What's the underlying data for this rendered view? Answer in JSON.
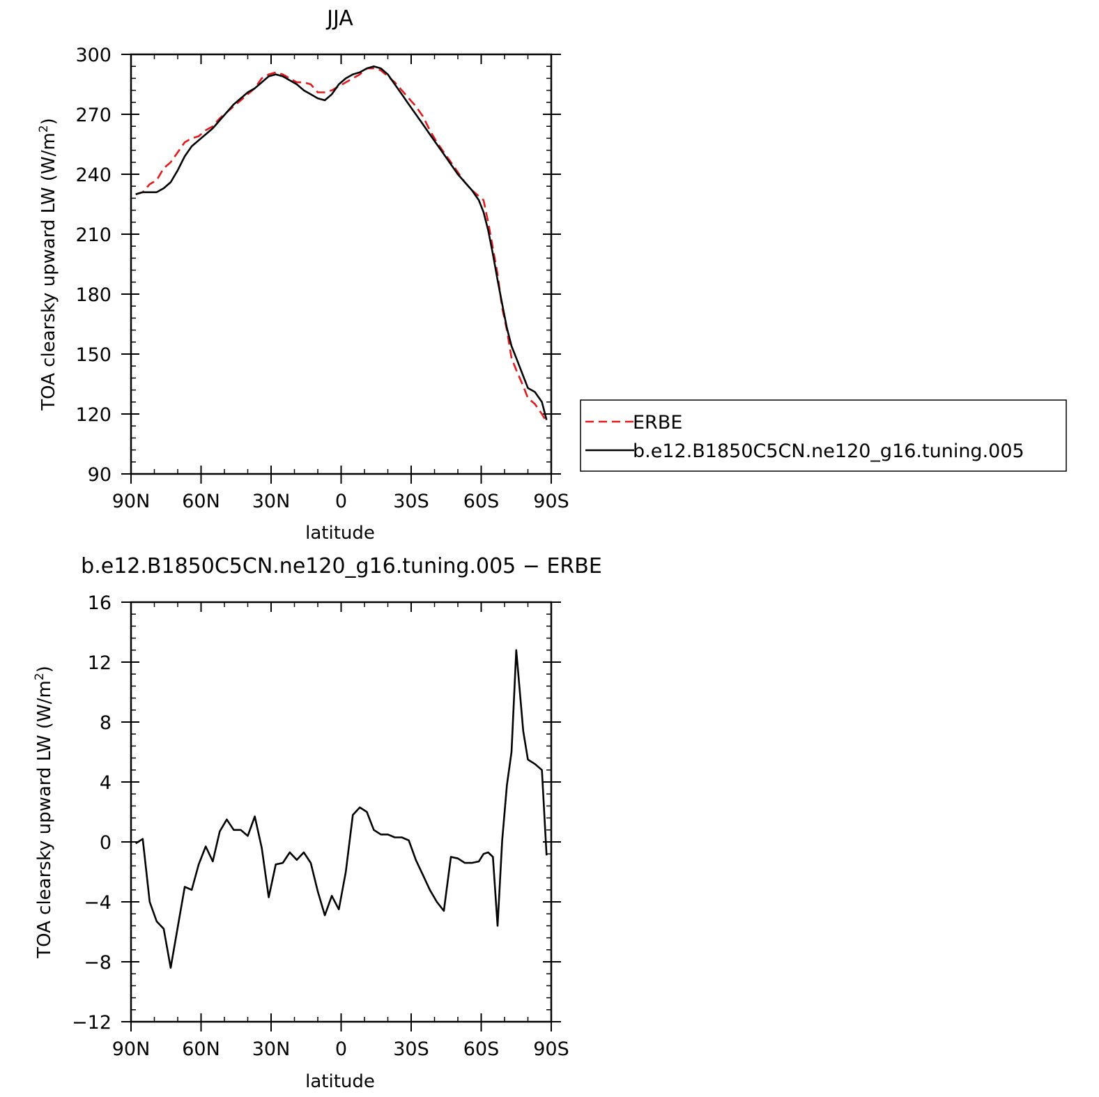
{
  "chart_data": [
    {
      "type": "line",
      "title": "JJA",
      "xlabel": "latitude",
      "ylabel_main": "TOA clearsky upward LW (W/m",
      "ylabel_sup": "2",
      "ylabel_close": ")",
      "xlim": [
        -90,
        90
      ],
      "ylim": [
        90,
        300
      ],
      "x_ticks": [
        {
          "value": -90,
          "label": "90N"
        },
        {
          "value": -60,
          "label": "60N"
        },
        {
          "value": -30,
          "label": "30N"
        },
        {
          "value": 0,
          "label": "0"
        },
        {
          "value": 30,
          "label": "30S"
        },
        {
          "value": 60,
          "label": "60S"
        },
        {
          "value": 90,
          "label": "90S"
        }
      ],
      "y_ticks": [
        {
          "value": 90,
          "label": "90"
        },
        {
          "value": 120,
          "label": "120"
        },
        {
          "value": 150,
          "label": "150"
        },
        {
          "value": 180,
          "label": "180"
        },
        {
          "value": 210,
          "label": "210"
        },
        {
          "value": 240,
          "label": "240"
        },
        {
          "value": 270,
          "label": "270"
        },
        {
          "value": 300,
          "label": "300"
        }
      ],
      "legend": {
        "placement": "right",
        "entries": [
          {
            "label": "ERBE",
            "color": "#e31a1c",
            "dash": "dashed"
          },
          {
            "label": "b.e12.B1850C5CN.ne120_g16.tuning.005",
            "color": "#000000",
            "dash": "solid"
          }
        ]
      },
      "series": [
        {
          "name": "ERBE",
          "color": "#e31a1c",
          "dash": "dashed",
          "points": [
            [
              -88,
              230
            ],
            [
              -85,
              231
            ],
            [
              -82,
              235
            ],
            [
              -79,
              237
            ],
            [
              -76,
              243
            ],
            [
              -73,
              246
            ],
            [
              -70,
              251
            ],
            [
              -67,
              256
            ],
            [
              -64,
              258
            ],
            [
              -61,
              259
            ],
            [
              -58,
              262
            ],
            [
              -55,
              264
            ],
            [
              -52,
              268
            ],
            [
              -49,
              271
            ],
            [
              -46,
              274
            ],
            [
              -43,
              277
            ],
            [
              -40,
              280
            ],
            [
              -37,
              283
            ],
            [
              -34,
              288
            ],
            [
              -31,
              290
            ],
            [
              -28,
              291
            ],
            [
              -25,
              290
            ],
            [
              -22,
              288
            ],
            [
              -19,
              286
            ],
            [
              -16,
              286
            ],
            [
              -13,
              285
            ],
            [
              -10,
              281
            ],
            [
              -7,
              281
            ],
            [
              -4,
              282
            ],
            [
              -1,
              284
            ],
            [
              2,
              286
            ],
            [
              5,
              288
            ],
            [
              8,
              290
            ],
            [
              11,
              293
            ],
            [
              14,
              293
            ],
            [
              17,
              292
            ],
            [
              20,
              289
            ],
            [
              23,
              286
            ],
            [
              26,
              282
            ],
            [
              29,
              278
            ],
            [
              32,
              274
            ],
            [
              35,
              269
            ],
            [
              38,
              262
            ],
            [
              41,
              256
            ],
            [
              44,
              251
            ],
            [
              47,
              246
            ],
            [
              50,
              241
            ],
            [
              53,
              236
            ],
            [
              56,
              232
            ],
            [
              59,
              229
            ],
            [
              61,
              227
            ],
            [
              63,
              216
            ],
            [
              65,
              203
            ],
            [
              67,
              190
            ],
            [
              69,
              173
            ],
            [
              71,
              162
            ],
            [
              73,
              148
            ],
            [
              75,
              142
            ],
            [
              78,
              134
            ],
            [
              80,
              128
            ],
            [
              83,
              125
            ],
            [
              86,
              120
            ],
            [
              88,
              116
            ]
          ]
        },
        {
          "name": "b.e12.B1850C5CN.ne120_g16.tuning.005",
          "color": "#000000",
          "dash": "solid",
          "points": [
            [
              -88,
              230
            ],
            [
              -85,
              231
            ],
            [
              -82,
              231
            ],
            [
              -79,
              231
            ],
            [
              -76,
              233
            ],
            [
              -73,
              236
            ],
            [
              -70,
              242
            ],
            [
              -67,
              249
            ],
            [
              -64,
              254
            ],
            [
              -61,
              257
            ],
            [
              -58,
              260
            ],
            [
              -55,
              263
            ],
            [
              -52,
              267
            ],
            [
              -49,
              271
            ],
            [
              -46,
              275
            ],
            [
              -43,
              278
            ],
            [
              -40,
              281
            ],
            [
              -37,
              283
            ],
            [
              -34,
              286
            ],
            [
              -31,
              289
            ],
            [
              -28,
              290
            ],
            [
              -25,
              289
            ],
            [
              -22,
              287
            ],
            [
              -19,
              285
            ],
            [
              -16,
              282
            ],
            [
              -13,
              280
            ],
            [
              -10,
              278
            ],
            [
              -7,
              277
            ],
            [
              -4,
              280
            ],
            [
              -1,
              285
            ],
            [
              2,
              288
            ],
            [
              5,
              290
            ],
            [
              8,
              291
            ],
            [
              11,
              293
            ],
            [
              14,
              294
            ],
            [
              17,
              293
            ],
            [
              20,
              290
            ],
            [
              23,
              285
            ],
            [
              26,
              280
            ],
            [
              29,
              275
            ],
            [
              32,
              270
            ],
            [
              35,
              265
            ],
            [
              38,
              260
            ],
            [
              41,
              255
            ],
            [
              44,
              250
            ],
            [
              47,
              245
            ],
            [
              50,
              240
            ],
            [
              53,
              236
            ],
            [
              56,
              232
            ],
            [
              59,
              227
            ],
            [
              61,
              221
            ],
            [
              63,
              212
            ],
            [
              65,
              200
            ],
            [
              67,
              187
            ],
            [
              69,
              175
            ],
            [
              71,
              163
            ],
            [
              73,
              154
            ],
            [
              75,
              148
            ],
            [
              78,
              139
            ],
            [
              80,
              133
            ],
            [
              83,
              131
            ],
            [
              86,
              126
            ],
            [
              88,
              117
            ]
          ]
        }
      ]
    },
    {
      "type": "line",
      "title": "b.e12.B1850C5CN.ne120_g16.tuning.005 − ERBE",
      "xlabel": "latitude",
      "ylabel_main": "TOA clearsky upward LW (W/m",
      "ylabel_sup": "2",
      "ylabel_close": ")",
      "xlim": [
        -90,
        90
      ],
      "ylim": [
        -12,
        16
      ],
      "x_ticks": [
        {
          "value": -90,
          "label": "90N"
        },
        {
          "value": -60,
          "label": "60N"
        },
        {
          "value": -30,
          "label": "30N"
        },
        {
          "value": 0,
          "label": "0"
        },
        {
          "value": 30,
          "label": "30S"
        },
        {
          "value": 60,
          "label": "60S"
        },
        {
          "value": 90,
          "label": "90S"
        }
      ],
      "y_ticks": [
        {
          "value": -12,
          "label": "−12"
        },
        {
          "value": -8,
          "label": "−8"
        },
        {
          "value": -4,
          "label": "−4"
        },
        {
          "value": 0,
          "label": "0"
        },
        {
          "value": 4,
          "label": "4"
        },
        {
          "value": 8,
          "label": "8"
        },
        {
          "value": 12,
          "label": "12"
        },
        {
          "value": 16,
          "label": "16"
        }
      ],
      "series": [
        {
          "name": "",
          "color": "#000000",
          "dash": "solid",
          "points": [
            [
              -88,
              -0.1
            ],
            [
              -85,
              0.2
            ],
            [
              -82,
              -4
            ],
            [
              -79,
              -5.3
            ],
            [
              -76,
              -5.8
            ],
            [
              -73,
              -8.4
            ],
            [
              -70,
              -5.7
            ],
            [
              -67,
              -3
            ],
            [
              -64,
              -3.2
            ],
            [
              -61,
              -1.5
            ],
            [
              -58,
              -0.3
            ],
            [
              -55,
              -1.3
            ],
            [
              -52,
              0.7
            ],
            [
              -49,
              1.5
            ],
            [
              -46,
              0.8
            ],
            [
              -43,
              0.8
            ],
            [
              -40,
              0.4
            ],
            [
              -37,
              1.7
            ],
            [
              -34,
              -0.4
            ],
            [
              -31,
              -3.7
            ],
            [
              -28,
              -1.5
            ],
            [
              -25,
              -1.4
            ],
            [
              -22,
              -0.7
            ],
            [
              -19,
              -1.2
            ],
            [
              -16,
              -0.7
            ],
            [
              -13,
              -1.4
            ],
            [
              -10,
              -3.3
            ],
            [
              -7,
              -4.9
            ],
            [
              -4,
              -3.6
            ],
            [
              -1,
              -4.5
            ],
            [
              2,
              -2
            ],
            [
              5,
              1.8
            ],
            [
              8,
              2.3
            ],
            [
              11,
              2
            ],
            [
              14,
              0.8
            ],
            [
              17,
              0.5
            ],
            [
              20,
              0.5
            ],
            [
              23,
              0.3
            ],
            [
              26,
              0.3
            ],
            [
              29,
              0.1
            ],
            [
              32,
              -1.2
            ],
            [
              35,
              -2.2
            ],
            [
              38,
              -3.2
            ],
            [
              41,
              -4
            ],
            [
              44,
              -4.6
            ],
            [
              47,
              -1
            ],
            [
              50,
              -1.1
            ],
            [
              53,
              -1.4
            ],
            [
              56,
              -1.4
            ],
            [
              59,
              -1.3
            ],
            [
              61,
              -0.8
            ],
            [
              63,
              -0.7
            ],
            [
              65,
              -1
            ],
            [
              67,
              -5.6
            ],
            [
              69,
              0.1
            ],
            [
              71,
              3.8
            ],
            [
              73,
              6
            ],
            [
              75,
              12.8
            ],
            [
              78,
              7.4
            ],
            [
              80,
              5.5
            ],
            [
              83,
              5.2
            ],
            [
              86,
              4.8
            ],
            [
              88,
              -0.9
            ]
          ]
        }
      ]
    }
  ]
}
